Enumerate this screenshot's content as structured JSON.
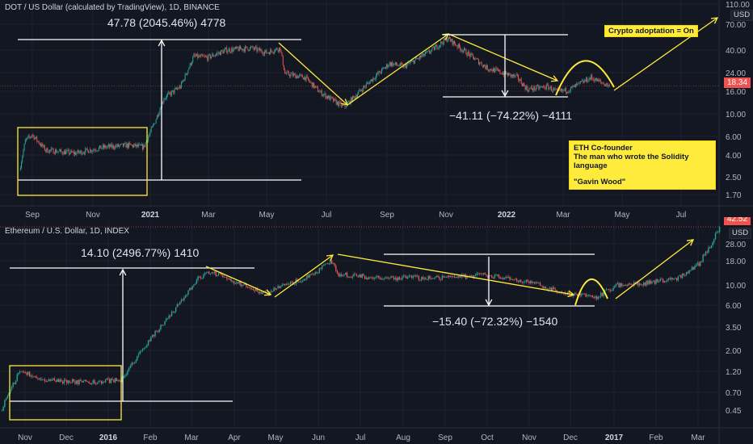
{
  "colors": {
    "background": "#131722",
    "grid": "#1e222d",
    "up": "#26a69a",
    "down": "#ef5350",
    "annotation": "#ffeb3b",
    "measure": "#ffffff"
  },
  "chart_data": [
    {
      "type": "candlestick",
      "title": "DOT / US Dollar (calculated by TradingView), 1D, BINANCE",
      "y_scale": "log",
      "currency": "USD",
      "last_price": "18.34",
      "y_ticks": [
        "110.00",
        "70.00",
        "40.00",
        "24.00",
        "16.00",
        "10.00",
        "6.00",
        "4.00",
        "2.50",
        "1.70"
      ],
      "x_ticks": [
        {
          "label": "Sep",
          "bold": false
        },
        {
          "label": "Nov",
          "bold": false
        },
        {
          "label": "2021",
          "bold": true
        },
        {
          "label": "Mar",
          "bold": false
        },
        {
          "label": "May",
          "bold": false
        },
        {
          "label": "Jul",
          "bold": false
        },
        {
          "label": "Sep",
          "bold": false
        },
        {
          "label": "Nov",
          "bold": false
        },
        {
          "label": "2022",
          "bold": true
        },
        {
          "label": "Mar",
          "bold": false
        },
        {
          "label": "May",
          "bold": false
        },
        {
          "label": "Jul",
          "bold": false
        }
      ],
      "price_path": [
        [
          "2020-08-19",
          2.9
        ],
        [
          "2020-08-25",
          5.5
        ],
        [
          "2020-09-01",
          6.3
        ],
        [
          "2020-09-15",
          4.5
        ],
        [
          "2020-10-15",
          4.2
        ],
        [
          "2020-11-15",
          4.8
        ],
        [
          "2020-12-10",
          5.0
        ],
        [
          "2020-12-25",
          4.8
        ],
        [
          "2021-01-05",
          8
        ],
        [
          "2021-01-15",
          14
        ],
        [
          "2021-02-01",
          18
        ],
        [
          "2021-02-15",
          35
        ],
        [
          "2021-03-01",
          34
        ],
        [
          "2021-03-20",
          40
        ],
        [
          "2021-04-15",
          42
        ],
        [
          "2021-05-01",
          38
        ],
        [
          "2021-05-15",
          42
        ],
        [
          "2021-05-20",
          24
        ],
        [
          "2021-06-10",
          22
        ],
        [
          "2021-06-25",
          16
        ],
        [
          "2021-07-20",
          11.5
        ],
        [
          "2021-08-15",
          20
        ],
        [
          "2021-09-05",
          30
        ],
        [
          "2021-09-20",
          28
        ],
        [
          "2021-10-15",
          38
        ],
        [
          "2021-11-04",
          52
        ],
        [
          "2021-11-20",
          40
        ],
        [
          "2021-12-15",
          27
        ],
        [
          "2022-01-15",
          22
        ],
        [
          "2022-01-25",
          17
        ],
        [
          "2022-02-15",
          18
        ],
        [
          "2022-02-25",
          16
        ],
        [
          "2022-03-10",
          17
        ],
        [
          "2022-04-01",
          22
        ],
        [
          "2022-04-10",
          20
        ],
        [
          "2022-04-20",
          18.34
        ]
      ],
      "annotations": {
        "measure_up": "47.78 (2045.46%) 4778",
        "measure_down": "−41.11 (−74.22%) −4111",
        "note_adoption": "Crypto adoptation = On",
        "note_line1": "ETH Co-founder",
        "note_line2": "The man who wrote the Solidity language",
        "note_line3": "\"Gavin Wood\""
      }
    },
    {
      "type": "candlestick",
      "title": "Ethereum / U.S. Dollar, 1D, INDEX",
      "y_scale": "log",
      "currency": "USD",
      "last_price": "42.52",
      "y_ticks": [
        "28.00",
        "18.00",
        "10.00",
        "6.00",
        "3.50",
        "2.00",
        "1.20",
        "0.70",
        "0.45"
      ],
      "x_ticks": [
        {
          "label": "Nov",
          "bold": false
        },
        {
          "label": "Dec",
          "bold": false
        },
        {
          "label": "2016",
          "bold": true
        },
        {
          "label": "Feb",
          "bold": false
        },
        {
          "label": "Mar",
          "bold": false
        },
        {
          "label": "Apr",
          "bold": false
        },
        {
          "label": "May",
          "bold": false
        },
        {
          "label": "Jun",
          "bold": false
        },
        {
          "label": "Jul",
          "bold": false
        },
        {
          "label": "Aug",
          "bold": false
        },
        {
          "label": "Sep",
          "bold": false
        },
        {
          "label": "Oct",
          "bold": false
        },
        {
          "label": "Nov",
          "bold": false
        },
        {
          "label": "Dec",
          "bold": false
        },
        {
          "label": "2017",
          "bold": true
        },
        {
          "label": "Feb",
          "bold": false
        },
        {
          "label": "Mar",
          "bold": false
        }
      ],
      "price_path": [
        [
          "2015-10-15",
          0.44
        ],
        [
          "2015-10-29",
          1.2
        ],
        [
          "2015-11-15",
          0.95
        ],
        [
          "2015-12-15",
          0.9
        ],
        [
          "2016-01-10",
          0.95
        ],
        [
          "2016-01-31",
          2.6
        ],
        [
          "2016-02-14",
          4.5
        ],
        [
          "2016-03-06",
          12
        ],
        [
          "2016-03-15",
          14
        ],
        [
          "2016-04-01",
          11
        ],
        [
          "2016-04-25",
          8
        ],
        [
          "2016-05-04",
          9.5
        ],
        [
          "2016-05-24",
          12
        ],
        [
          "2016-06-11",
          18
        ],
        [
          "2016-06-16",
          13
        ],
        [
          "2016-07-16",
          12
        ],
        [
          "2016-09-01",
          12
        ],
        [
          "2016-09-30",
          13
        ],
        [
          "2016-10-29",
          11
        ],
        [
          "2016-11-30",
          8
        ],
        [
          "2016-12-21",
          7.5
        ],
        [
          "2017-01-04",
          10
        ],
        [
          "2017-01-25",
          10.5
        ],
        [
          "2017-02-17",
          12
        ],
        [
          "2017-03-04",
          17
        ],
        [
          "2017-03-13",
          28
        ],
        [
          "2017-03-19",
          42.52
        ]
      ],
      "annotations": {
        "measure_up": "14.10 (2496.77%) 1410",
        "measure_down": "−15.40 (−72.32%) −1540"
      }
    }
  ]
}
